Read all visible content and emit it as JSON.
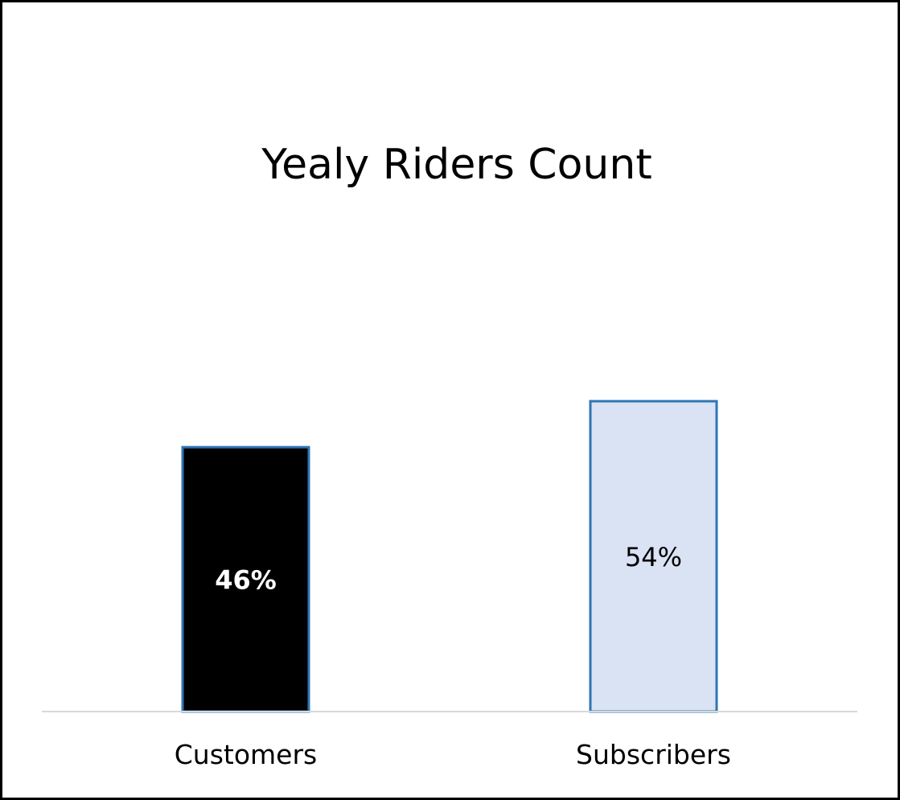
{
  "chart_data": {
    "type": "bar",
    "title": "Yealy Riders Count",
    "xlabel": "",
    "ylabel": "",
    "categories": [
      "Customers",
      "Subscribers"
    ],
    "values": [
      46,
      54
    ],
    "data_labels": [
      "46%",
      "54%"
    ],
    "ylim": [
      0,
      100
    ],
    "grid": false,
    "legend": "none",
    "colors": {
      "bar_fills": [
        "#000000",
        "#dae3f3"
      ],
      "bar_edge": "#2e75b6",
      "label_colors": [
        "#ffffff",
        "#000000"
      ],
      "label_weights": [
        "bold",
        "normal"
      ],
      "axis_line": "#d9d9d9"
    }
  }
}
